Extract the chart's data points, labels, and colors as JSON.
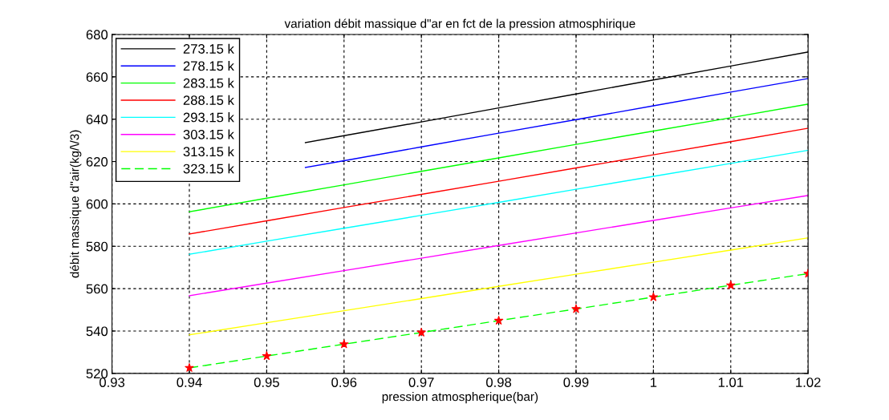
{
  "chart_data": {
    "type": "line",
    "title": "variation débit massique d\"ar en fct de la pression atmosphirique",
    "xlabel": "pression atmospherique(bar)",
    "ylabel": "débit massique d\"air(kg/\\/3)",
    "xlim": [
      0.93,
      1.02
    ],
    "xticks": [
      0.93,
      0.94,
      0.95,
      0.96,
      0.97,
      0.98,
      0.99,
      {
        "value": 1.0,
        "label": "1"
      },
      1.01,
      1.02
    ],
    "ylim": [
      520,
      680
    ],
    "yticks": [
      520,
      540,
      560,
      580,
      600,
      620,
      640,
      660,
      680
    ],
    "grid": true,
    "legend": "top left",
    "marker": "none",
    "x": [
      0.94,
      0.95,
      0.96,
      0.97,
      0.98,
      0.99,
      1.0,
      1.01,
      1.02
    ],
    "series": [
      {
        "name": "273.15 k",
        "color": "#000000",
        "x": [
          0.955,
          0.96,
          0.97,
          0.98,
          0.99,
          1.0,
          1.01,
          1.02
        ],
        "values": [
          628.9,
          632.2,
          638.7,
          645.3,
          651.9,
          658.5,
          665.1,
          671.7
        ]
      },
      {
        "name": "278.15 k",
        "color": "#0000ff",
        "x": [
          0.955,
          0.96,
          0.97,
          0.98,
          0.99,
          1.0,
          1.01,
          1.02
        ],
        "values": [
          617.2,
          620.4,
          626.9,
          633.4,
          639.8,
          646.3,
          652.8,
          659.2
        ]
      },
      {
        "name": "283.15 k",
        "color": "#00ff00",
        "values": [
          596.3,
          602.7,
          609.0,
          615.4,
          621.7,
          628.1,
          634.4,
          640.7,
          647.1
        ]
      },
      {
        "name": "288.15 k",
        "color": "#ff0000",
        "values": [
          585.8,
          592.0,
          598.3,
          604.5,
          610.7,
          617.0,
          623.2,
          629.4,
          635.7
        ]
      },
      {
        "name": "293.15 k",
        "color": "#00ffff",
        "values": [
          576.2,
          582.4,
          588.5,
          594.6,
          600.7,
          606.9,
          613.0,
          619.1,
          625.3
        ]
      },
      {
        "name": "303.15 k",
        "color": "#ff00ff",
        "values": [
          556.7,
          562.6,
          568.5,
          574.4,
          580.4,
          586.3,
          592.2,
          598.1,
          604.0
        ]
      },
      {
        "name": "313.15 k",
        "color": "#ffff00",
        "values": [
          538.2,
          543.9,
          549.6,
          555.3,
          561.1,
          566.8,
          572.5,
          578.2,
          584.0
        ]
      },
      {
        "name": "323.15 k",
        "color": "#00ff00",
        "line_style": "dashed",
        "values": [
          522.6,
          528.2,
          533.8,
          539.3,
          544.9,
          550.4,
          556.0,
          561.6,
          567.1
        ]
      },
      {
        "type": "scatter",
        "color": "#ff0000",
        "marker": "star",
        "values": [
          522.6,
          528.2,
          533.8,
          539.3,
          544.9,
          550.4,
          556.0,
          561.6,
          567.1
        ]
      }
    ]
  }
}
